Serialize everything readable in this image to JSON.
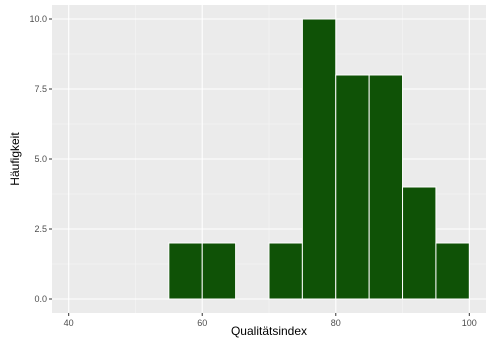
{
  "chart_data": {
    "type": "bar",
    "subtype": "histogram",
    "xlabel": "Qualitätsindex",
    "ylabel": "Häufigkeit",
    "xlim": [
      37.5,
      102.5
    ],
    "ylim": [
      -0.5,
      10.5
    ],
    "x_ticks": [
      40,
      60,
      80,
      100
    ],
    "x_tick_labels": [
      "40",
      "60",
      "80",
      "100"
    ],
    "y_ticks": [
      0,
      2.5,
      5,
      7.5,
      10
    ],
    "y_tick_labels": [
      "0.0",
      "2.5",
      "5.0",
      "7.5",
      "10.0"
    ],
    "bin_width": 5,
    "bins": [
      {
        "x_start": 55,
        "x_end": 60,
        "count": 2
      },
      {
        "x_start": 60,
        "x_end": 65,
        "count": 2
      },
      {
        "x_start": 70,
        "x_end": 75,
        "count": 2
      },
      {
        "x_start": 75,
        "x_end": 80,
        "count": 10
      },
      {
        "x_start": 80,
        "x_end": 85,
        "count": 8
      },
      {
        "x_start": 85,
        "x_end": 90,
        "count": 8
      },
      {
        "x_start": 90,
        "x_end": 95,
        "count": 4
      },
      {
        "x_start": 95,
        "x_end": 100,
        "count": 2
      }
    ],
    "grid": true,
    "colors": {
      "bar_fill": "#0f5206",
      "bar_stroke": "#ffffff",
      "panel_background": "#ebebeb",
      "grid_major": "#ffffff",
      "grid_minor": "#f5f5f5"
    }
  }
}
